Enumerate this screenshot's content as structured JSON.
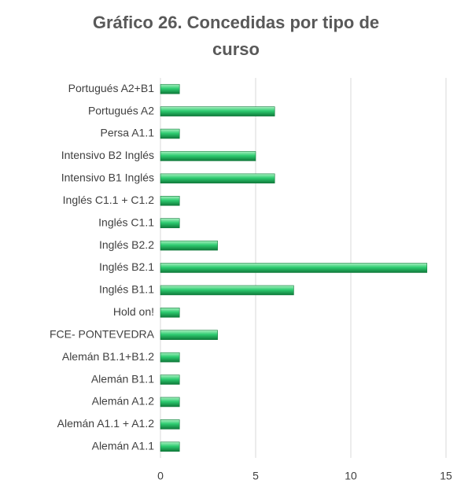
{
  "chart_data": {
    "type": "bar",
    "orientation": "horizontal",
    "title": "Gráfico 26. Concedidas por tipo de curso",
    "categories": [
      "Portugués A2+B1",
      "Portugués A2",
      "Persa A1.1",
      "Intensivo B2 Inglés",
      "Intensivo B1 Inglés",
      "Inglés C1.1 + C1.2",
      "Inglés C1.1",
      "Inglés B2.2",
      "Inglés B2.1",
      "Inglés B1.1",
      "Hold on!",
      "FCE- PONTEVEDRA",
      "Alemán B1.1+B1.2",
      "Alemán B1.1",
      "Alemán A1.2",
      "Alemán A1.1 + A1.2",
      "Alemán A1.1"
    ],
    "values": [
      1,
      6,
      1,
      5,
      6,
      1,
      1,
      3,
      14,
      7,
      1,
      3,
      1,
      1,
      1,
      1,
      1
    ],
    "color": "#2ecc71",
    "xlim": [
      0,
      15
    ],
    "xticks": [
      0,
      5,
      10,
      15
    ],
    "grid": true
  }
}
